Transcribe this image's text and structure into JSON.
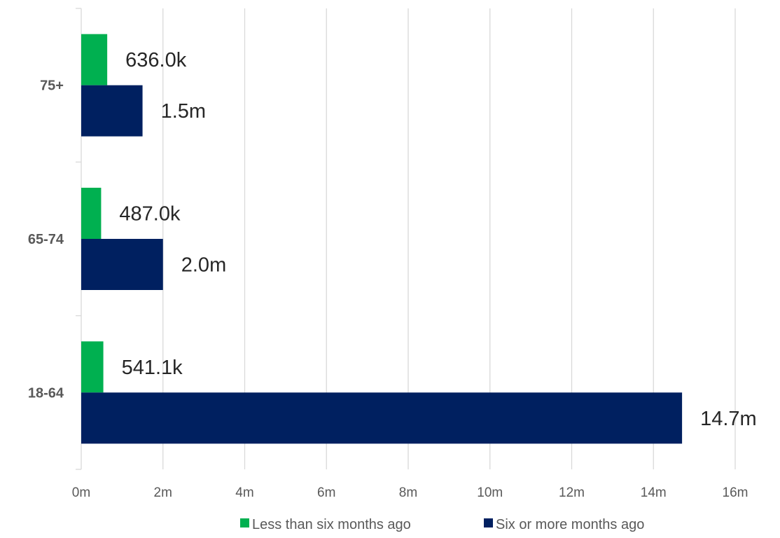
{
  "chart_data": {
    "type": "bar",
    "orientation": "horizontal",
    "categories": [
      "75+",
      "65-74",
      "18-64"
    ],
    "series": [
      {
        "name": "Less than six months ago",
        "color": "#00b050",
        "values": [
          636000,
          487000,
          541100
        ],
        "data_labels": [
          "636.0k",
          "487.0k",
          "541.1k"
        ]
      },
      {
        "name": "Six or more months ago",
        "color": "#002060",
        "values": [
          1500000,
          2000000,
          14700000
        ],
        "data_labels": [
          "1.5m",
          "2.0m",
          "14.7m"
        ]
      }
    ],
    "xlim": [
      0,
      16000000
    ],
    "x_ticks": [
      0,
      2000000,
      4000000,
      6000000,
      8000000,
      10000000,
      12000000,
      14000000,
      16000000
    ],
    "x_tick_labels": [
      "0m",
      "2m",
      "4m",
      "6m",
      "8m",
      "10m",
      "12m",
      "14m",
      "16m"
    ],
    "grid": "vertical",
    "legend_position": "bottom"
  }
}
